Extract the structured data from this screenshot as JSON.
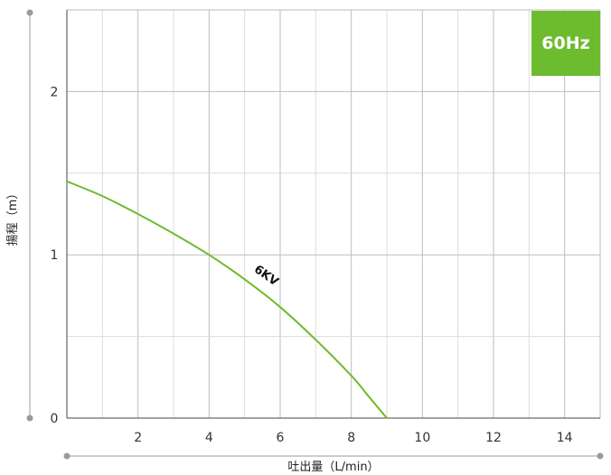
{
  "chart_data": {
    "type": "line",
    "title": "",
    "xlabel": "吐出量（L/min）",
    "ylabel": "揚程（m）",
    "xlim": [
      0,
      15
    ],
    "ylim": [
      0,
      2.5
    ],
    "x_ticks": [
      2,
      4,
      6,
      8,
      10,
      12,
      14
    ],
    "x_tick_labels": [
      "2",
      "4",
      "6",
      "8",
      "10",
      "12",
      "14"
    ],
    "y_ticks": [
      0,
      1,
      2
    ],
    "y_tick_labels": [
      "0",
      "1",
      "2"
    ],
    "grid": true,
    "series": [
      {
        "name": "6KV",
        "color": "#6dbb2f",
        "x": [
          0,
          1,
          2,
          3,
          4,
          5,
          6,
          7,
          8,
          8.5,
          9
        ],
        "y": [
          1.45,
          1.36,
          1.25,
          1.13,
          1.0,
          0.85,
          0.68,
          0.48,
          0.26,
          0.13,
          0.0
        ]
      }
    ],
    "badge": {
      "text": "60Hz",
      "color": "#6dbb2f"
    }
  }
}
